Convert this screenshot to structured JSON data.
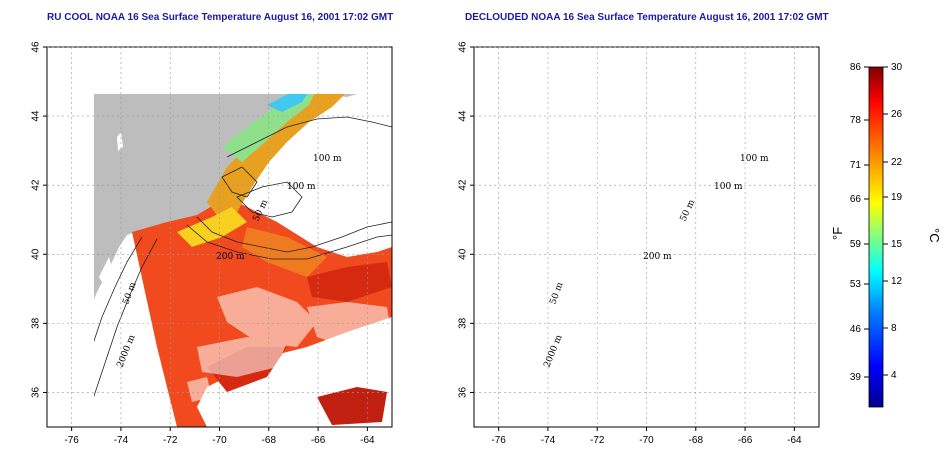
{
  "panels": [
    {
      "title": "RU COOL NOAA 16 Sea Surface Temperature August 16, 2001 17:02 GMT",
      "clouds": true
    },
    {
      "title": "DECLOUDED NOAA 16 Sea Surface Temperature August 16, 2001 17:02 GMT",
      "clouds": false
    }
  ],
  "axes": {
    "x_ticks": [
      "-76",
      "-74",
      "-72",
      "-70",
      "-68",
      "-66",
      "-64"
    ],
    "y_ticks": [
      "46",
      "44",
      "42",
      "40",
      "38",
      "36"
    ]
  },
  "contour_labels": [
    "100 m",
    "100 m",
    "50 m",
    "200 m",
    "50 m",
    "2000 m"
  ],
  "colorbar": {
    "unit_left": "°F",
    "unit_right": "°C",
    "f_ticks": [
      "86",
      "78",
      "71",
      "66",
      "59",
      "53",
      "46",
      "39"
    ],
    "c_ticks": [
      "30",
      "26",
      "22",
      "19",
      "15",
      "12",
      "8",
      "4"
    ],
    "colors": [
      "#00008f",
      "#0000ff",
      "#0080ff",
      "#00ffff",
      "#80ff80",
      "#ffff00",
      "#ff8000",
      "#ff0000",
      "#800000"
    ]
  },
  "colors": {
    "land": "#bdbdbd",
    "title": "#1a1aa6",
    "warm": "#f04a1e",
    "gulf": "#e8a020"
  }
}
